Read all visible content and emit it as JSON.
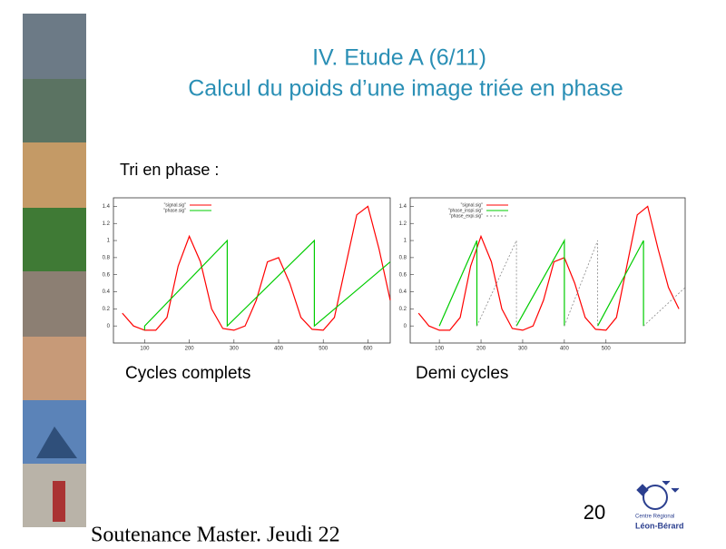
{
  "title": [
    "IV. Etude A (6/11)",
    "Calcul du poids d’une image triée en phase"
  ],
  "section_label": "Tri en phase :",
  "chart_data": [
    {
      "type": "line",
      "caption": "Cycles complets",
      "xlim": [
        30,
        650
      ],
      "ylim": [
        -0.2,
        1.5
      ],
      "xticks": [
        100,
        200,
        300,
        400,
        500,
        600
      ],
      "yticks": [
        0,
        0.2,
        0.4,
        0.6,
        0.8,
        1,
        1.2,
        1.4
      ],
      "series": [
        {
          "name": "\"signal.sig\"",
          "color": "#ff0000",
          "style": "solid",
          "x": [
            50,
            75,
            100,
            125,
            150,
            175,
            200,
            225,
            250,
            275,
            300,
            325,
            350,
            375,
            400,
            425,
            450,
            475,
            500,
            525,
            550,
            575,
            600,
            625,
            650
          ],
          "values": [
            0.15,
            0.0,
            -0.05,
            -0.05,
            0.1,
            0.7,
            1.05,
            0.75,
            0.2,
            -0.03,
            -0.05,
            0.0,
            0.3,
            0.75,
            0.8,
            0.5,
            0.1,
            -0.04,
            -0.05,
            0.1,
            0.7,
            1.3,
            1.4,
            0.9,
            0.3
          ]
        },
        {
          "name": "\"phase.sig\"",
          "color": "#00cc00",
          "style": "solid",
          "x": [
            100,
            100,
            285,
            285,
            480,
            480,
            650
          ],
          "values": [
            -0.05,
            0,
            1,
            0,
            1,
            0,
            0.75
          ]
        }
      ]
    },
    {
      "type": "line",
      "caption": "Demi cycles",
      "xlim": [
        30,
        690
      ],
      "ylim": [
        -0.2,
        1.5
      ],
      "xticks": [
        100,
        200,
        300,
        400,
        500
      ],
      "yticks": [
        0,
        0.2,
        0.4,
        0.6,
        0.8,
        1,
        1.2,
        1.4
      ],
      "series": [
        {
          "name": "\"signal.sig\"",
          "color": "#ff0000",
          "style": "solid",
          "x": [
            50,
            75,
            100,
            125,
            150,
            175,
            200,
            225,
            250,
            275,
            300,
            325,
            350,
            375,
            400,
            425,
            450,
            475,
            500,
            525,
            550,
            575,
            600,
            625,
            650,
            675
          ],
          "values": [
            0.15,
            0.0,
            -0.05,
            -0.05,
            0.1,
            0.7,
            1.05,
            0.75,
            0.2,
            -0.03,
            -0.05,
            0.0,
            0.3,
            0.75,
            0.8,
            0.5,
            0.1,
            -0.04,
            -0.05,
            0.1,
            0.7,
            1.3,
            1.4,
            0.9,
            0.45,
            0.2
          ]
        },
        {
          "name": "\"phase_inspi.sig\"",
          "color": "#00cc00",
          "style": "solid",
          "x": [
            100,
            190,
            190,
            null,
            285,
            400,
            400,
            null,
            480,
            590,
            590
          ],
          "values": [
            0,
            1,
            0,
            null,
            0,
            1,
            0,
            null,
            0,
            1,
            0
          ]
        },
        {
          "name": "\"phase_expi.sig\"",
          "color": "#888888",
          "style": "dotted",
          "x": [
            190,
            285,
            285,
            null,
            400,
            480,
            480,
            null,
            590,
            690
          ],
          "values": [
            0,
            1,
            0,
            null,
            0,
            1,
            0,
            null,
            0,
            0.45
          ]
        }
      ]
    }
  ],
  "footer": {
    "text": "Soutenance Master. Jeudi 22",
    "page_number": "20",
    "logo": [
      "Centre Régional",
      "Léon-Bérard"
    ]
  }
}
